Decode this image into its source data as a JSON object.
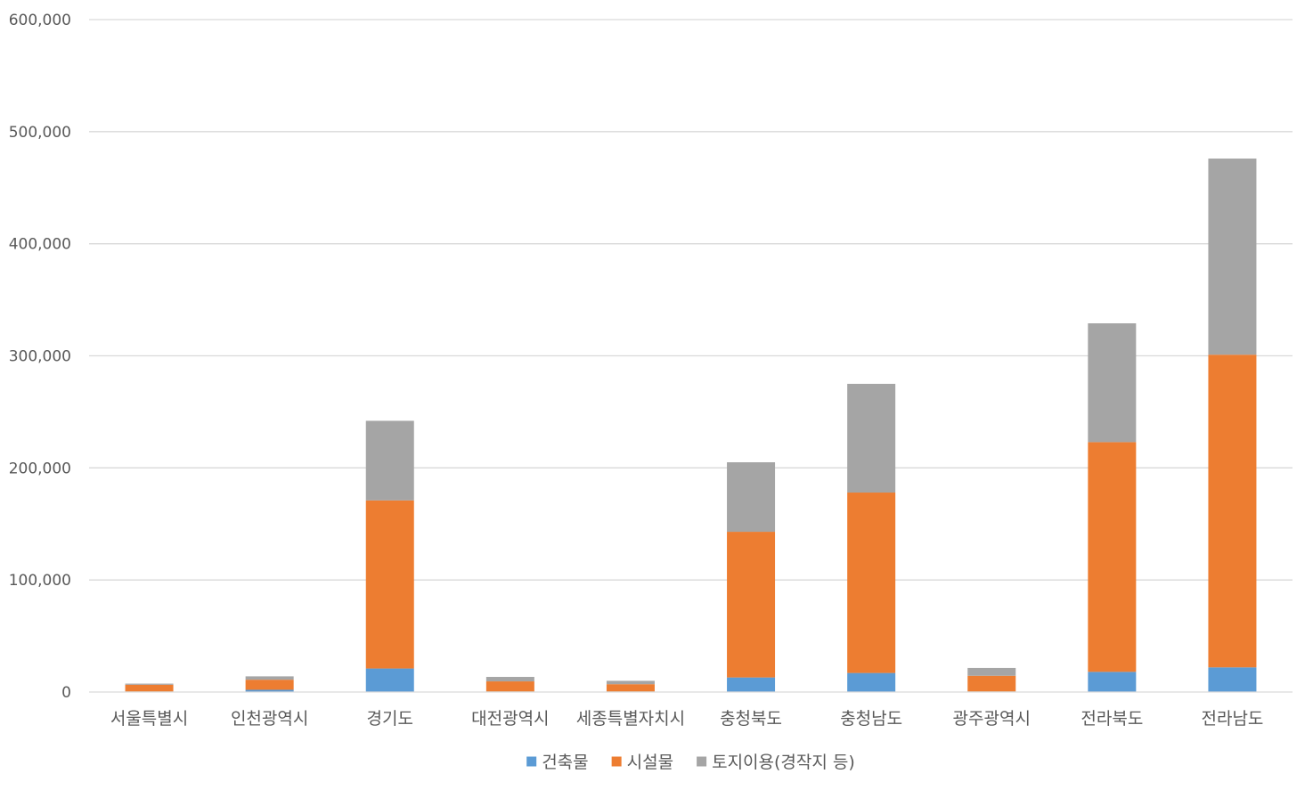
{
  "chart_data": {
    "type": "bar",
    "stacked": true,
    "categories": [
      "서울특별시",
      "인천광역시",
      "경기도",
      "대전광역시",
      "세종특별자치시",
      "충청북도",
      "충청남도",
      "광주광역시",
      "전라북도",
      "전라남도"
    ],
    "series": [
      {
        "name": "건축물",
        "color": "#5B9BD5",
        "values": [
          500,
          2000,
          21000,
          500,
          500,
          13000,
          17000,
          500,
          18000,
          22000
        ]
      },
      {
        "name": "시설물",
        "color": "#ED7D31",
        "values": [
          6000,
          9000,
          150000,
          9000,
          6500,
          130000,
          161000,
          14000,
          205000,
          279000
        ]
      },
      {
        "name": "토지이용(경작지 등)",
        "color": "#A5A5A5",
        "values": [
          1000,
          3000,
          71000,
          4000,
          3000,
          62000,
          97000,
          7000,
          106000,
          175000
        ]
      }
    ],
    "yticks": [
      "0",
      "100,000",
      "200,000",
      "300,000",
      "400,000",
      "500,000",
      "600,000"
    ],
    "ylim": [
      0,
      600000
    ],
    "grid": true,
    "legend_position": "bottom"
  }
}
